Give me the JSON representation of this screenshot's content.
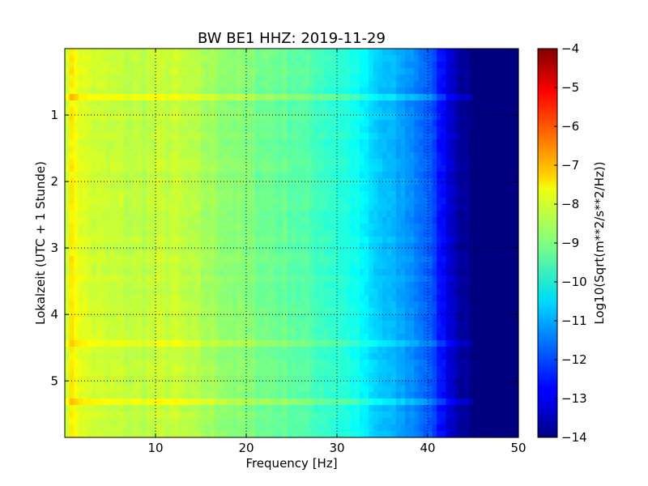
{
  "chart_data": {
    "type": "heatmap",
    "title": "BW BE1 HHZ: 2019-11-29",
    "xlabel": "Frequency [Hz]",
    "ylabel": "Lokalzeit (UTC + 1 Stunde)",
    "xlim": [
      0,
      50
    ],
    "ylim": [
      5.85,
      0
    ],
    "y_inverted": true,
    "x_ticks": [
      10,
      20,
      30,
      40,
      50
    ],
    "y_ticks": [
      1,
      2,
      3,
      4,
      5
    ],
    "grid": true,
    "grid_style": "dotted",
    "colormap": "jet",
    "colorbar": {
      "label": "Log10(Sqrt(m**2/s**2/Hz))",
      "range": [
        -14,
        -4
      ],
      "ticks": [
        -4,
        -5,
        -6,
        -7,
        -8,
        -9,
        -10,
        -11,
        -12,
        -13,
        -14
      ]
    },
    "frequency_profile": {
      "frequency_hz": [
        0,
        0.5,
        1,
        2,
        4,
        8,
        12,
        15,
        20,
        25,
        30,
        32,
        34,
        36,
        38,
        40,
        42,
        44,
        46,
        50
      ],
      "log10_amplitude": [
        -8.6,
        -7.6,
        -7.7,
        -8.1,
        -8.3,
        -8.4,
        -8.3,
        -8.6,
        -9.0,
        -9.3,
        -9.8,
        -10.1,
        -10.7,
        -11.0,
        -11.3,
        -11.8,
        -12.9,
        -13.8,
        -14,
        -14
      ]
    },
    "highlighted_times": [
      4.45,
      5.33,
      0.75
    ]
  }
}
